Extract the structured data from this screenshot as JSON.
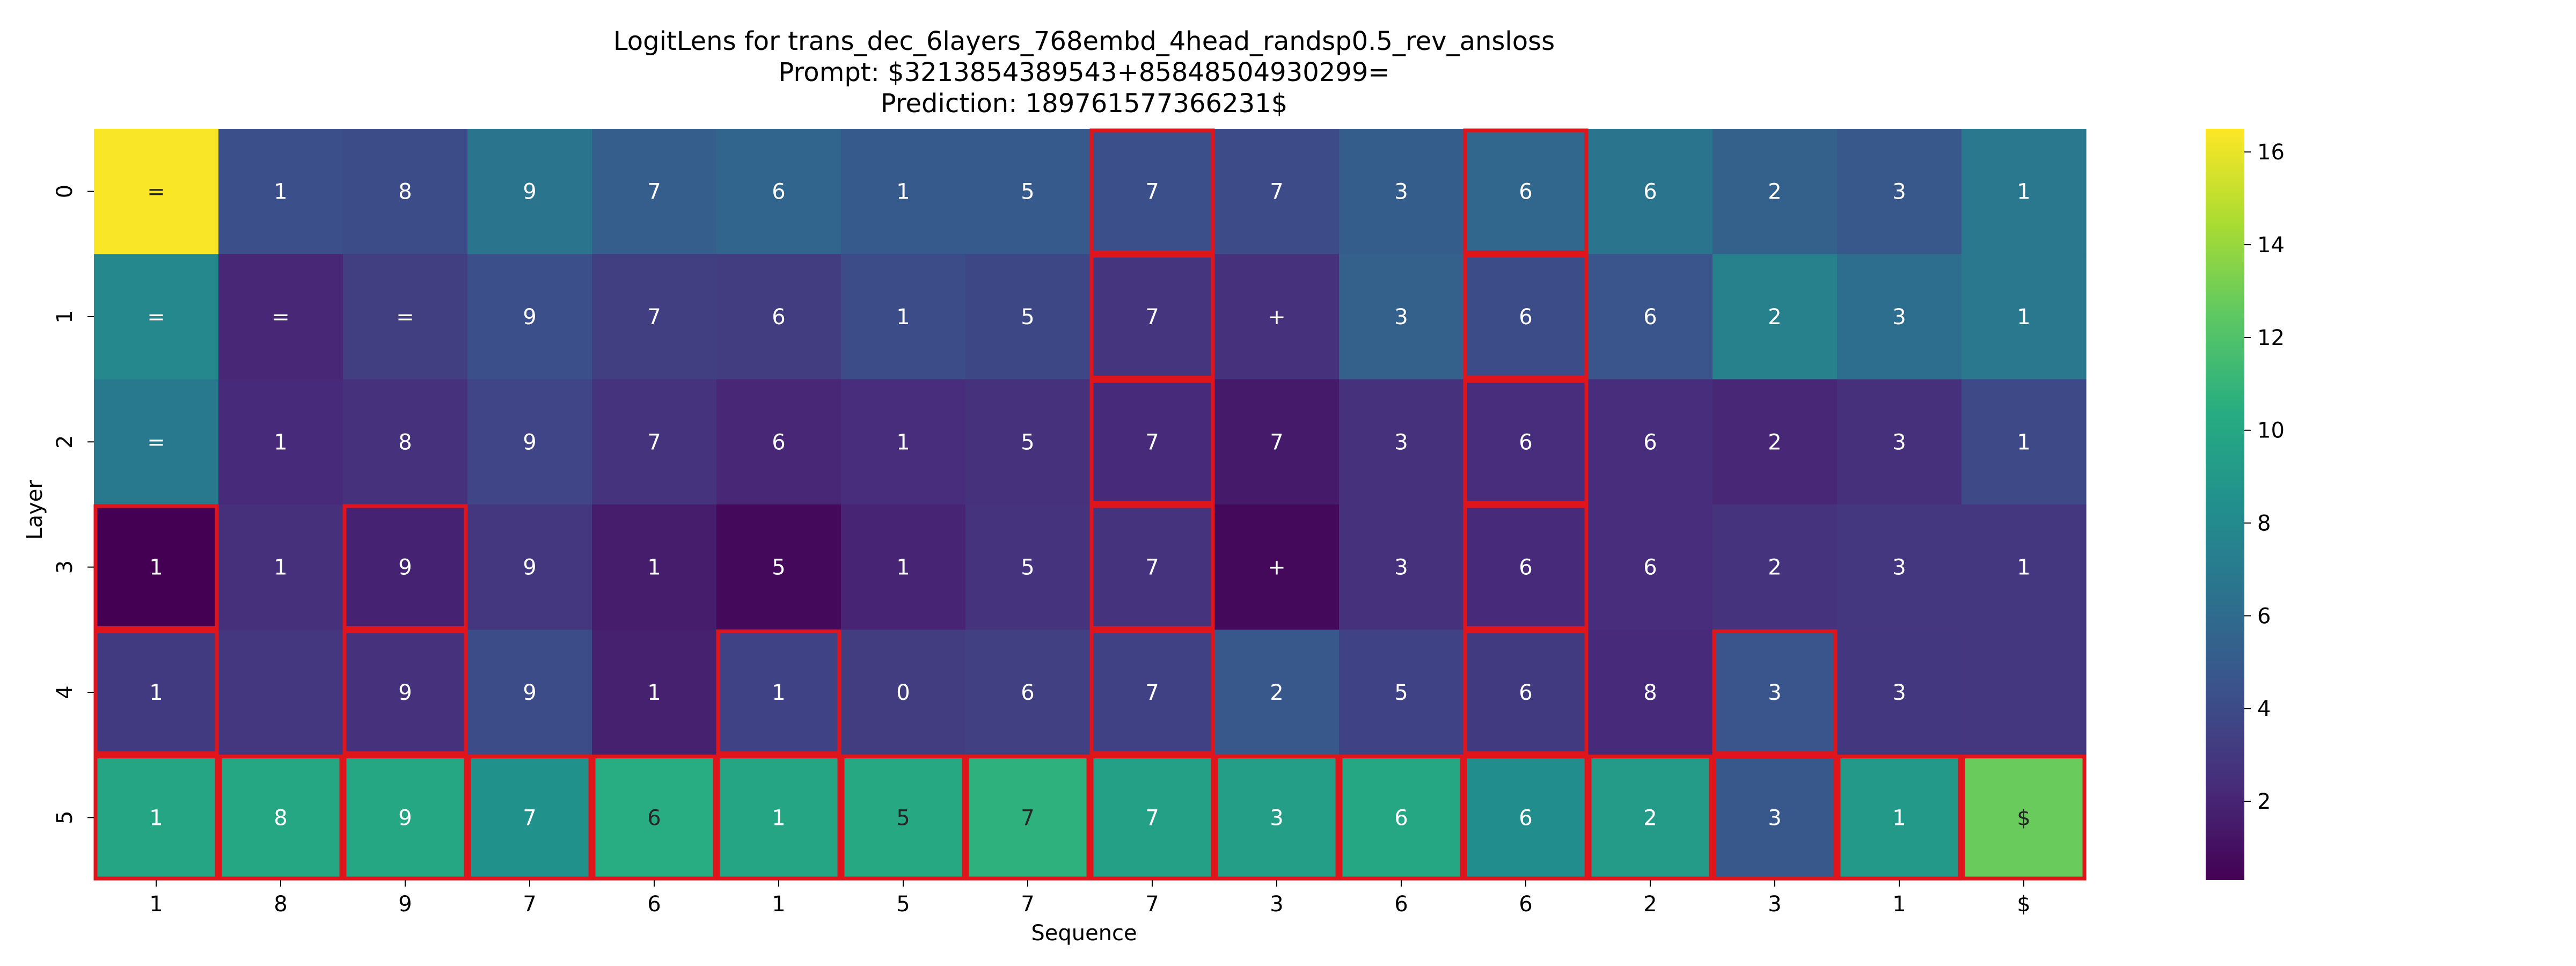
{
  "chart_data": {
    "type": "heatmap",
    "title_lines": [
      "LogitLens for trans_dec_6layers_768embd_4head_randsp0.5_rev_ansloss",
      "Prompt: $3213854389543+85848504930299=",
      "Prediction: 189761577366231$"
    ],
    "xlabel": "Sequence",
    "ylabel": "Layer",
    "x_ticks": [
      "1",
      "8",
      "9",
      "7",
      "6",
      "1",
      "5",
      "7",
      "7",
      "3",
      "6",
      "6",
      "2",
      "3",
      "1",
      "$"
    ],
    "y_ticks": [
      "0",
      "1",
      "2",
      "3",
      "4",
      "5"
    ],
    "tokens": [
      [
        "=",
        "1",
        "8",
        "9",
        "7",
        "6",
        "1",
        "5",
        "7",
        "7",
        "3",
        "6",
        "6",
        "2",
        "3",
        "1"
      ],
      [
        "=",
        "=",
        "=",
        "9",
        "7",
        "6",
        "1",
        "5",
        "7",
        "+",
        "3",
        "6",
        "6",
        "2",
        "3",
        "1"
      ],
      [
        "=",
        "1",
        "8",
        "9",
        "7",
        "6",
        "1",
        "5",
        "7",
        "7",
        "3",
        "6",
        "6",
        "2",
        "3",
        "1"
      ],
      [
        "1",
        "1",
        "9",
        "9",
        "1",
        "5",
        "1",
        "5",
        "7",
        "+",
        "3",
        "6",
        "6",
        "2",
        "3",
        "1"
      ],
      [
        "1",
        "",
        "9",
        "9",
        "1",
        "1",
        "0",
        "6",
        "7",
        "2",
        "5",
        "6",
        "8",
        "3",
        "3",
        ""
      ],
      [
        "1",
        "8",
        "9",
        "7",
        "6",
        "1",
        "5",
        "7",
        "7",
        "3",
        "6",
        "6",
        "2",
        "3",
        "1",
        "$"
      ]
    ],
    "values": [
      [
        16.4,
        4.3,
        4.1,
        6.6,
        5.2,
        5.6,
        4.9,
        4.9,
        4.3,
        4.0,
        5.1,
        5.7,
        6.6,
        5.3,
        4.8,
        6.8
      ],
      [
        7.9,
        2.1,
        3.3,
        4.3,
        3.3,
        3.2,
        4.1,
        3.8,
        2.8,
        2.6,
        5.3,
        4.1,
        4.6,
        7.4,
        6.2,
        6.8
      ],
      [
        6.9,
        2.3,
        2.6,
        3.7,
        2.7,
        2.1,
        2.4,
        2.6,
        2.3,
        1.5,
        2.6,
        2.4,
        2.4,
        2.1,
        2.5,
        3.9
      ],
      [
        0.3,
        2.5,
        1.9,
        2.9,
        1.6,
        0.7,
        2.0,
        2.7,
        2.7,
        0.7,
        2.6,
        2.3,
        2.4,
        2.7,
        2.9,
        2.9
      ],
      [
        3.1,
        2.9,
        2.6,
        4.1,
        1.8,
        3.6,
        3.2,
        3.4,
        3.5,
        4.8,
        3.6,
        3.1,
        2.3,
        4.6,
        3.0,
        2.9
      ],
      [
        9.9,
        10.0,
        10.0,
        8.5,
        10.4,
        9.9,
        10.1,
        10.7,
        9.5,
        9.4,
        10.0,
        8.2,
        9.2,
        4.8,
        9.1,
        12.8
      ]
    ],
    "highlight": [
      [
        false,
        false,
        false,
        false,
        false,
        false,
        false,
        false,
        true,
        false,
        false,
        true,
        false,
        false,
        false,
        false
      ],
      [
        false,
        false,
        false,
        false,
        false,
        false,
        false,
        false,
        true,
        false,
        false,
        true,
        false,
        false,
        false,
        false
      ],
      [
        false,
        false,
        false,
        false,
        false,
        false,
        false,
        false,
        true,
        false,
        false,
        true,
        false,
        false,
        false,
        false
      ],
      [
        true,
        false,
        true,
        false,
        false,
        false,
        false,
        false,
        true,
        false,
        false,
        true,
        false,
        false,
        false,
        false
      ],
      [
        true,
        false,
        true,
        false,
        false,
        true,
        false,
        false,
        true,
        false,
        false,
        true,
        false,
        true,
        false,
        false
      ],
      [
        true,
        true,
        true,
        true,
        true,
        true,
        true,
        true,
        true,
        true,
        true,
        true,
        true,
        true,
        true,
        true
      ]
    ],
    "colormap": "viridis",
    "vmin": 0.3,
    "vmax": 16.5,
    "colorbar_ticks": [
      2,
      4,
      6,
      8,
      10,
      12,
      14,
      16
    ],
    "highlight_color": "#e0151b",
    "grid": false,
    "legend": "colorbar-right"
  }
}
